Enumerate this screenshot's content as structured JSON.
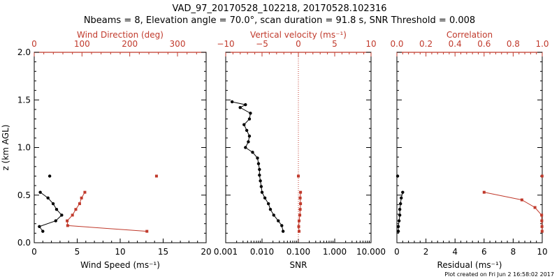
{
  "header": {
    "title": "VAD_97_20170528_102218, 20170528.102316",
    "subtitle": "Nbeams = 8, Elevation angle = 70.0°, scan duration = 91.8 s, SNR Threshold = 0.008"
  },
  "footer": {
    "plot_created": "Plot created on Fri Jun  2 16:58:02 2017"
  },
  "colors": {
    "black": "#000000",
    "red": "#c0392b"
  },
  "chart_data": [
    {
      "type": "line",
      "panel": "wind",
      "ylabel": "z (km AGL)",
      "ylim": [
        0,
        2
      ],
      "yticks": [
        "0.0",
        "0.5",
        "1.0",
        "1.5",
        "2.0"
      ],
      "xlabel_bottom": "Wind Speed (ms⁻¹)",
      "xlim_bottom": [
        0,
        20
      ],
      "xticks_bottom": [
        "0",
        "5",
        "10",
        "15",
        "20"
      ],
      "xlabel_top": "Wind Direction (deg)",
      "xlim_top": [
        0,
        360
      ],
      "xticks_top": [
        "0",
        "100",
        "200",
        "300"
      ],
      "grid": false,
      "series": [
        {
          "axis": "bottom",
          "color": "black",
          "points": [
            [
              1.0,
              0.12
            ],
            [
              0.6,
              0.17
            ],
            [
              2.5,
              0.23
            ],
            [
              3.2,
              0.29
            ],
            [
              2.6,
              0.35
            ],
            [
              2.2,
              0.41
            ],
            [
              1.6,
              0.47
            ],
            [
              0.7,
              0.53
            ]
          ],
          "isolated": [
            [
              1.8,
              0.7
            ]
          ]
        },
        {
          "axis": "top",
          "color": "red",
          "points": [
            [
              236,
              0.12
            ],
            [
              70,
              0.18
            ],
            [
              69,
              0.23
            ],
            [
              80,
              0.29
            ],
            [
              87,
              0.35
            ],
            [
              95,
              0.41
            ],
            [
              99,
              0.47
            ],
            [
              106,
              0.53
            ]
          ],
          "isolated": [
            [
              256,
              0.7
            ]
          ]
        }
      ]
    },
    {
      "type": "line",
      "panel": "snr",
      "xlabel_bottom": "SNR",
      "xscale": "log",
      "xlim_bottom": [
        0.001,
        10
      ],
      "xticks_bottom": [
        "0.001",
        "0.010",
        "0.100",
        "1.000",
        "10.000"
      ],
      "xlabel_top": "Vertical velocity (ms⁻¹)",
      "xlim_top": [
        -10,
        10
      ],
      "xticks_top": [
        "−10",
        "−5",
        "0",
        "5",
        "10"
      ],
      "zero_line": "dotted red at 0",
      "grid": false,
      "series": [
        {
          "axis": "bottom",
          "color": "black",
          "points": [
            [
              0.038,
              0.12
            ],
            [
              0.035,
              0.18
            ],
            [
              0.028,
              0.23
            ],
            [
              0.021,
              0.29
            ],
            [
              0.017,
              0.35
            ],
            [
              0.015,
              0.41
            ],
            [
              0.012,
              0.47
            ],
            [
              0.01,
              0.53
            ],
            [
              0.0095,
              0.59
            ],
            [
              0.009,
              0.65
            ],
            [
              0.0085,
              0.71
            ],
            [
              0.0085,
              0.77
            ],
            [
              0.008,
              0.83
            ],
            [
              0.0075,
              0.89
            ],
            [
              0.0055,
              0.95
            ],
            [
              0.0035,
              1.0
            ],
            [
              0.0042,
              1.06
            ],
            [
              0.0045,
              1.12
            ],
            [
              0.0038,
              1.18
            ],
            [
              0.0032,
              1.24
            ],
            [
              0.0045,
              1.3
            ],
            [
              0.0048,
              1.36
            ],
            [
              0.0025,
              1.42
            ],
            [
              0.0035,
              1.45
            ],
            [
              0.0015,
              1.48
            ]
          ]
        },
        {
          "axis": "top",
          "color": "red",
          "points": [
            [
              0.1,
              0.12
            ],
            [
              0.05,
              0.17
            ],
            [
              0.1,
              0.23
            ],
            [
              0.2,
              0.29
            ],
            [
              0.25,
              0.35
            ],
            [
              0.3,
              0.41
            ],
            [
              0.25,
              0.47
            ],
            [
              0.3,
              0.53
            ]
          ],
          "isolated": [
            [
              0,
              0.7
            ]
          ]
        }
      ]
    },
    {
      "type": "line",
      "panel": "residual",
      "xlabel_bottom": "Residual (ms⁻¹)",
      "xlim_bottom": [
        0,
        10
      ],
      "xticks_bottom": [
        "0",
        "2",
        "4",
        "6",
        "8",
        "10"
      ],
      "xlabel_top": "Correlation",
      "xlim_top": [
        0,
        1
      ],
      "xticks_top": [
        "0.0",
        "0.2",
        "0.4",
        "0.6",
        "0.8",
        "1.0"
      ],
      "grid": false,
      "series": [
        {
          "axis": "bottom",
          "color": "black",
          "points": [
            [
              0.1,
              0.12
            ],
            [
              0.1,
              0.17
            ],
            [
              0.15,
              0.23
            ],
            [
              0.2,
              0.29
            ],
            [
              0.2,
              0.35
            ],
            [
              0.25,
              0.41
            ],
            [
              0.3,
              0.47
            ],
            [
              0.4,
              0.53
            ]
          ],
          "isolated": [
            [
              0.05,
              0.7
            ]
          ]
        },
        {
          "axis": "top",
          "color": "red",
          "points": [
            [
              0.999,
              0.12
            ],
            [
              0.998,
              0.17
            ],
            [
              0.997,
              0.23
            ],
            [
              0.996,
              0.29
            ],
            [
              0.95,
              0.37
            ],
            [
              0.86,
              0.45
            ],
            [
              0.6,
              0.53
            ]
          ],
          "isolated": [
            [
              0.999,
              0.7
            ]
          ]
        }
      ]
    }
  ]
}
